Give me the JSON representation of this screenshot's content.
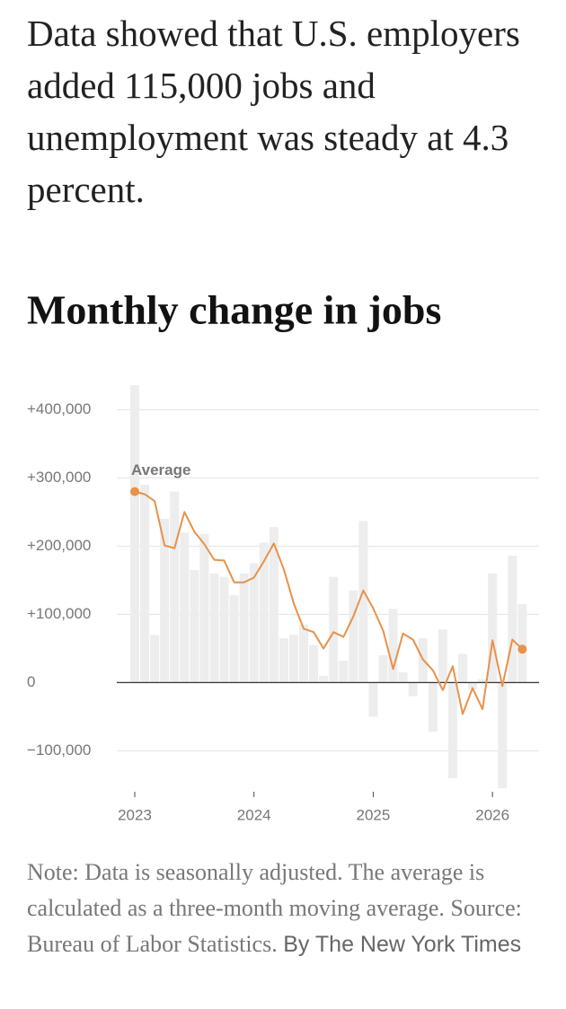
{
  "headline": "Data showed that U.S. employers added 115,000 jobs and unemployment was steady at 4.3 percent.",
  "chart_data": {
    "type": "bar",
    "title": "Monthly change in jobs",
    "categories": [
      "2023",
      null,
      null,
      null,
      null,
      null,
      null,
      null,
      null,
      null,
      null,
      null,
      "2024",
      null,
      null,
      null,
      null,
      null,
      null,
      null,
      null,
      null,
      null,
      null,
      "2025",
      null,
      null,
      null,
      null,
      null,
      null,
      null,
      null,
      null,
      null,
      null,
      "2026",
      null,
      null,
      null
    ],
    "values": [
      436000,
      290000,
      70000,
      240000,
      280000,
      220000,
      165000,
      218000,
      160000,
      155000,
      128000,
      160000,
      175000,
      205000,
      228000,
      65000,
      70000,
      85000,
      55000,
      10000,
      155000,
      32000,
      135000,
      237000,
      -50000,
      40000,
      108000,
      15000,
      -20000,
      65000,
      -72000,
      78000,
      -140000,
      42000,
      -10000,
      5000,
      160000,
      -155000,
      186000,
      115000
    ],
    "color": "#ededed",
    "average": {
      "label": "Average",
      "color": "#e8914a",
      "values": [
        280000,
        276000,
        266000,
        201000,
        197000,
        250000,
        221000,
        203000,
        180000,
        179000,
        147000,
        147000,
        154000,
        178000,
        204000,
        166000,
        116000,
        79000,
        74000,
        50000,
        74000,
        67000,
        97000,
        135000,
        109000,
        76000,
        20000,
        72000,
        63000,
        34000,
        18000,
        -11000,
        24000,
        -46000,
        -8000,
        -39000,
        62000,
        -5000,
        63000,
        49000
      ]
    },
    "ylim": [
      -160000,
      440000
    ],
    "yticks": [
      {
        "value": -100000,
        "label": "−100,000"
      },
      0,
      {
        "value": 100000,
        "label": "+100,000"
      },
      {
        "value": 200000,
        "label": "+200,000"
      },
      {
        "value": 300000,
        "label": "+300,000"
      },
      {
        "value": 400000,
        "label": "+400,000"
      }
    ],
    "grid": true
  },
  "footer": {
    "note": "Note: Data is seasonally adjusted. The average is calculated as a three-month moving average.",
    "source": "Source: Bureau of Labor Statistics.",
    "byline": "By The New York Times"
  }
}
